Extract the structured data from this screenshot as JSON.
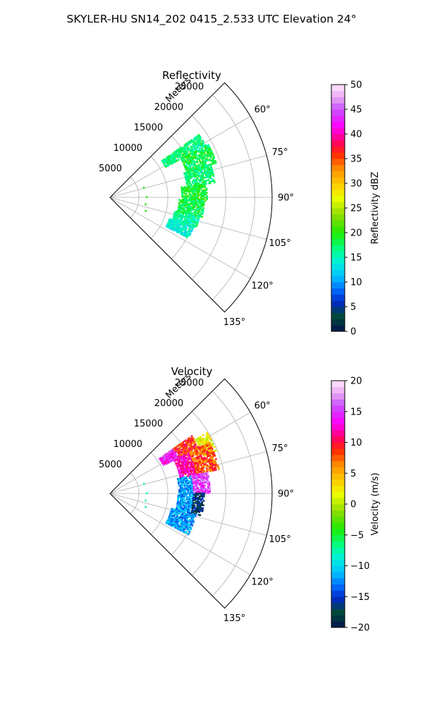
{
  "figure": {
    "title": "SKYLER-HU  SN14_202  0415_2.533 UTC Elevation 24°"
  },
  "chart_data": [
    {
      "type": "heatmap",
      "title": "Reflectivity",
      "radial_label": "Meters",
      "radial_ticks": [
        5000,
        10000,
        15000,
        20000,
        25000
      ],
      "radial_tick_labels": [
        "5000",
        "10000",
        "15000",
        "20000",
        "25000"
      ],
      "rlim": [
        0,
        28000
      ],
      "azimuth_ticks": [
        60,
        75,
        90,
        105,
        120,
        135
      ],
      "azimuth_tick_labels": [
        "60°",
        "75°",
        "90°",
        "105°",
        "120°",
        "135°"
      ],
      "azimuth_range": [
        45,
        135
      ],
      "grid": true,
      "colorbar": {
        "label": "Reflectivity dBZ",
        "range": [
          0,
          50
        ],
        "ticks": [
          0,
          5,
          10,
          15,
          20,
          25,
          30,
          35,
          40,
          45,
          50
        ],
        "tick_labels": [
          "0",
          "5",
          "10",
          "15",
          "20",
          "25",
          "30",
          "35",
          "40",
          "45",
          "50"
        ]
      },
      "echo_regions": [
        {
          "az": [
            55,
            62
          ],
          "r": [
            11000,
            19000
          ],
          "value": 17
        },
        {
          "az": [
            62,
            72
          ],
          "r": [
            14000,
            19500
          ],
          "value": 18
        },
        {
          "az": [
            72,
            82
          ],
          "r": [
            13500,
            18500
          ],
          "value": 17
        },
        {
          "az": [
            82,
            92
          ],
          "r": [
            12500,
            17000
          ],
          "value": 19
        },
        {
          "az": [
            92,
            102
          ],
          "r": [
            12000,
            16500
          ],
          "value": 18
        },
        {
          "az": [
            102,
            110
          ],
          "r": [
            11500,
            16000
          ],
          "value": 16
        },
        {
          "az": [
            110,
            118
          ],
          "r": [
            11000,
            15500
          ],
          "value": 14
        }
      ]
    },
    {
      "type": "heatmap",
      "title": "Velocity",
      "radial_label": "Meters",
      "radial_ticks": [
        5000,
        10000,
        15000,
        20000,
        25000
      ],
      "radial_tick_labels": [
        "5000",
        "10000",
        "15000",
        "20000",
        "25000"
      ],
      "rlim": [
        0,
        28000
      ],
      "azimuth_ticks": [
        60,
        75,
        90,
        105,
        120,
        135
      ],
      "azimuth_tick_labels": [
        "60°",
        "75°",
        "90°",
        "105°",
        "120°",
        "135°"
      ],
      "azimuth_range": [
        45,
        135
      ],
      "grid": true,
      "colorbar": {
        "label": "Velocity (m/s)",
        "range": [
          -20,
          20
        ],
        "ticks": [
          -20,
          -15,
          -10,
          -5,
          0,
          5,
          10,
          15,
          20
        ],
        "tick_labels": [
          "−20",
          "−15",
          "−10",
          "−5",
          "0",
          "5",
          "10",
          "15",
          "20"
        ]
      },
      "echo_regions": [
        {
          "az": [
            55,
            63
          ],
          "r": [
            10500,
            13500
          ],
          "value": 14
        },
        {
          "az": [
            55,
            63
          ],
          "r": [
            13500,
            17500
          ],
          "value": 9
        },
        {
          "az": [
            58,
            68
          ],
          "r": [
            17500,
            20000
          ],
          "value": 2
        },
        {
          "az": [
            63,
            78
          ],
          "r": [
            12500,
            15500
          ],
          "value": 12
        },
        {
          "az": [
            63,
            78
          ],
          "r": [
            15500,
            19500
          ],
          "value": 8
        },
        {
          "az": [
            78,
            90
          ],
          "r": [
            12000,
            14500
          ],
          "value": -12
        },
        {
          "az": [
            78,
            90
          ],
          "r": [
            14500,
            17500
          ],
          "value": 15
        },
        {
          "az": [
            90,
            104
          ],
          "r": [
            11800,
            14500
          ],
          "value": -12
        },
        {
          "az": [
            90,
            104
          ],
          "r": [
            14500,
            16500
          ],
          "value": -17
        },
        {
          "az": [
            104,
            118
          ],
          "r": [
            11000,
            15500
          ],
          "value": -12
        }
      ]
    }
  ]
}
